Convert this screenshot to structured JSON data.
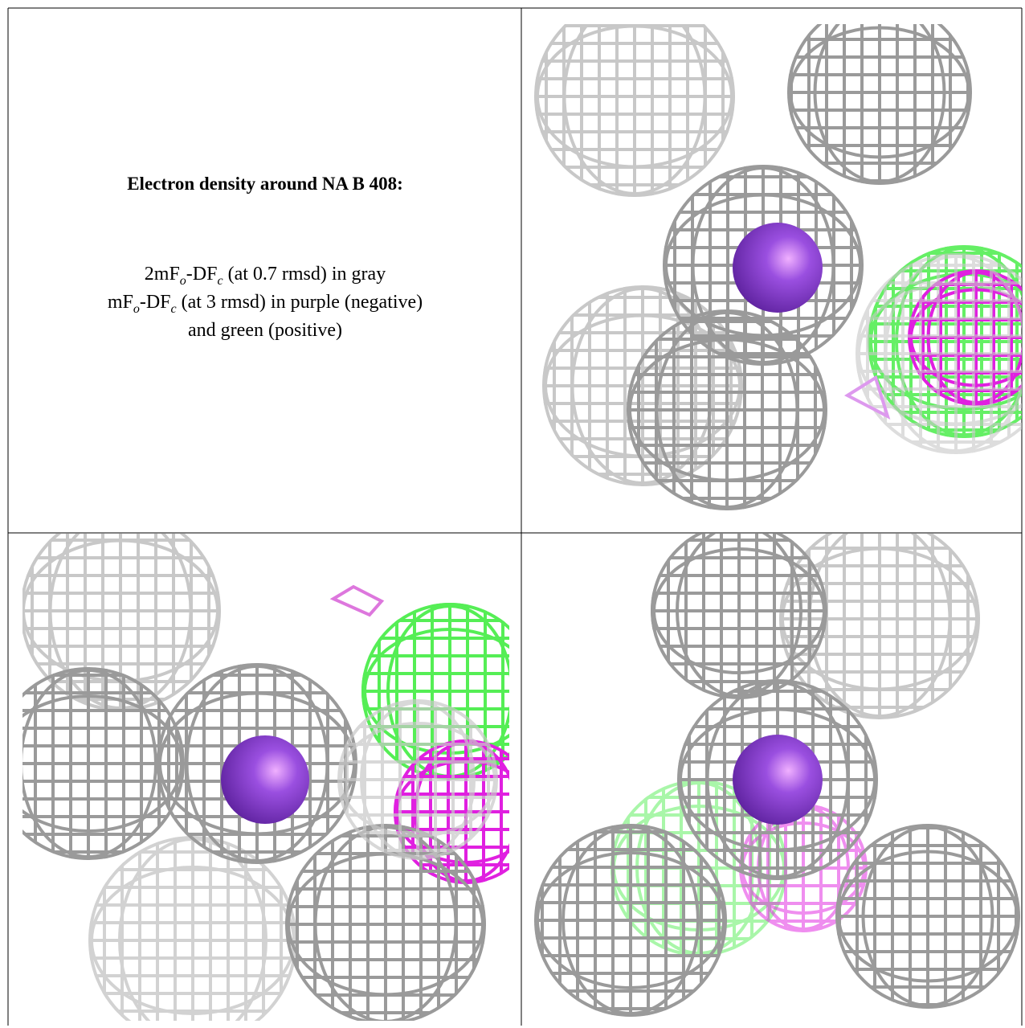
{
  "legend": {
    "title": "Electron density around NA B 408:",
    "lines": [
      [
        "2mF",
        "o",
        "-DF",
        "c",
        " (at 0.7 rmsd) in gray"
      ],
      [
        "mF",
        "o",
        "-DF",
        "c",
        " (at 3 rmsd) in purple (negative)"
      ],
      [
        "and green (positive)"
      ]
    ]
  }
}
